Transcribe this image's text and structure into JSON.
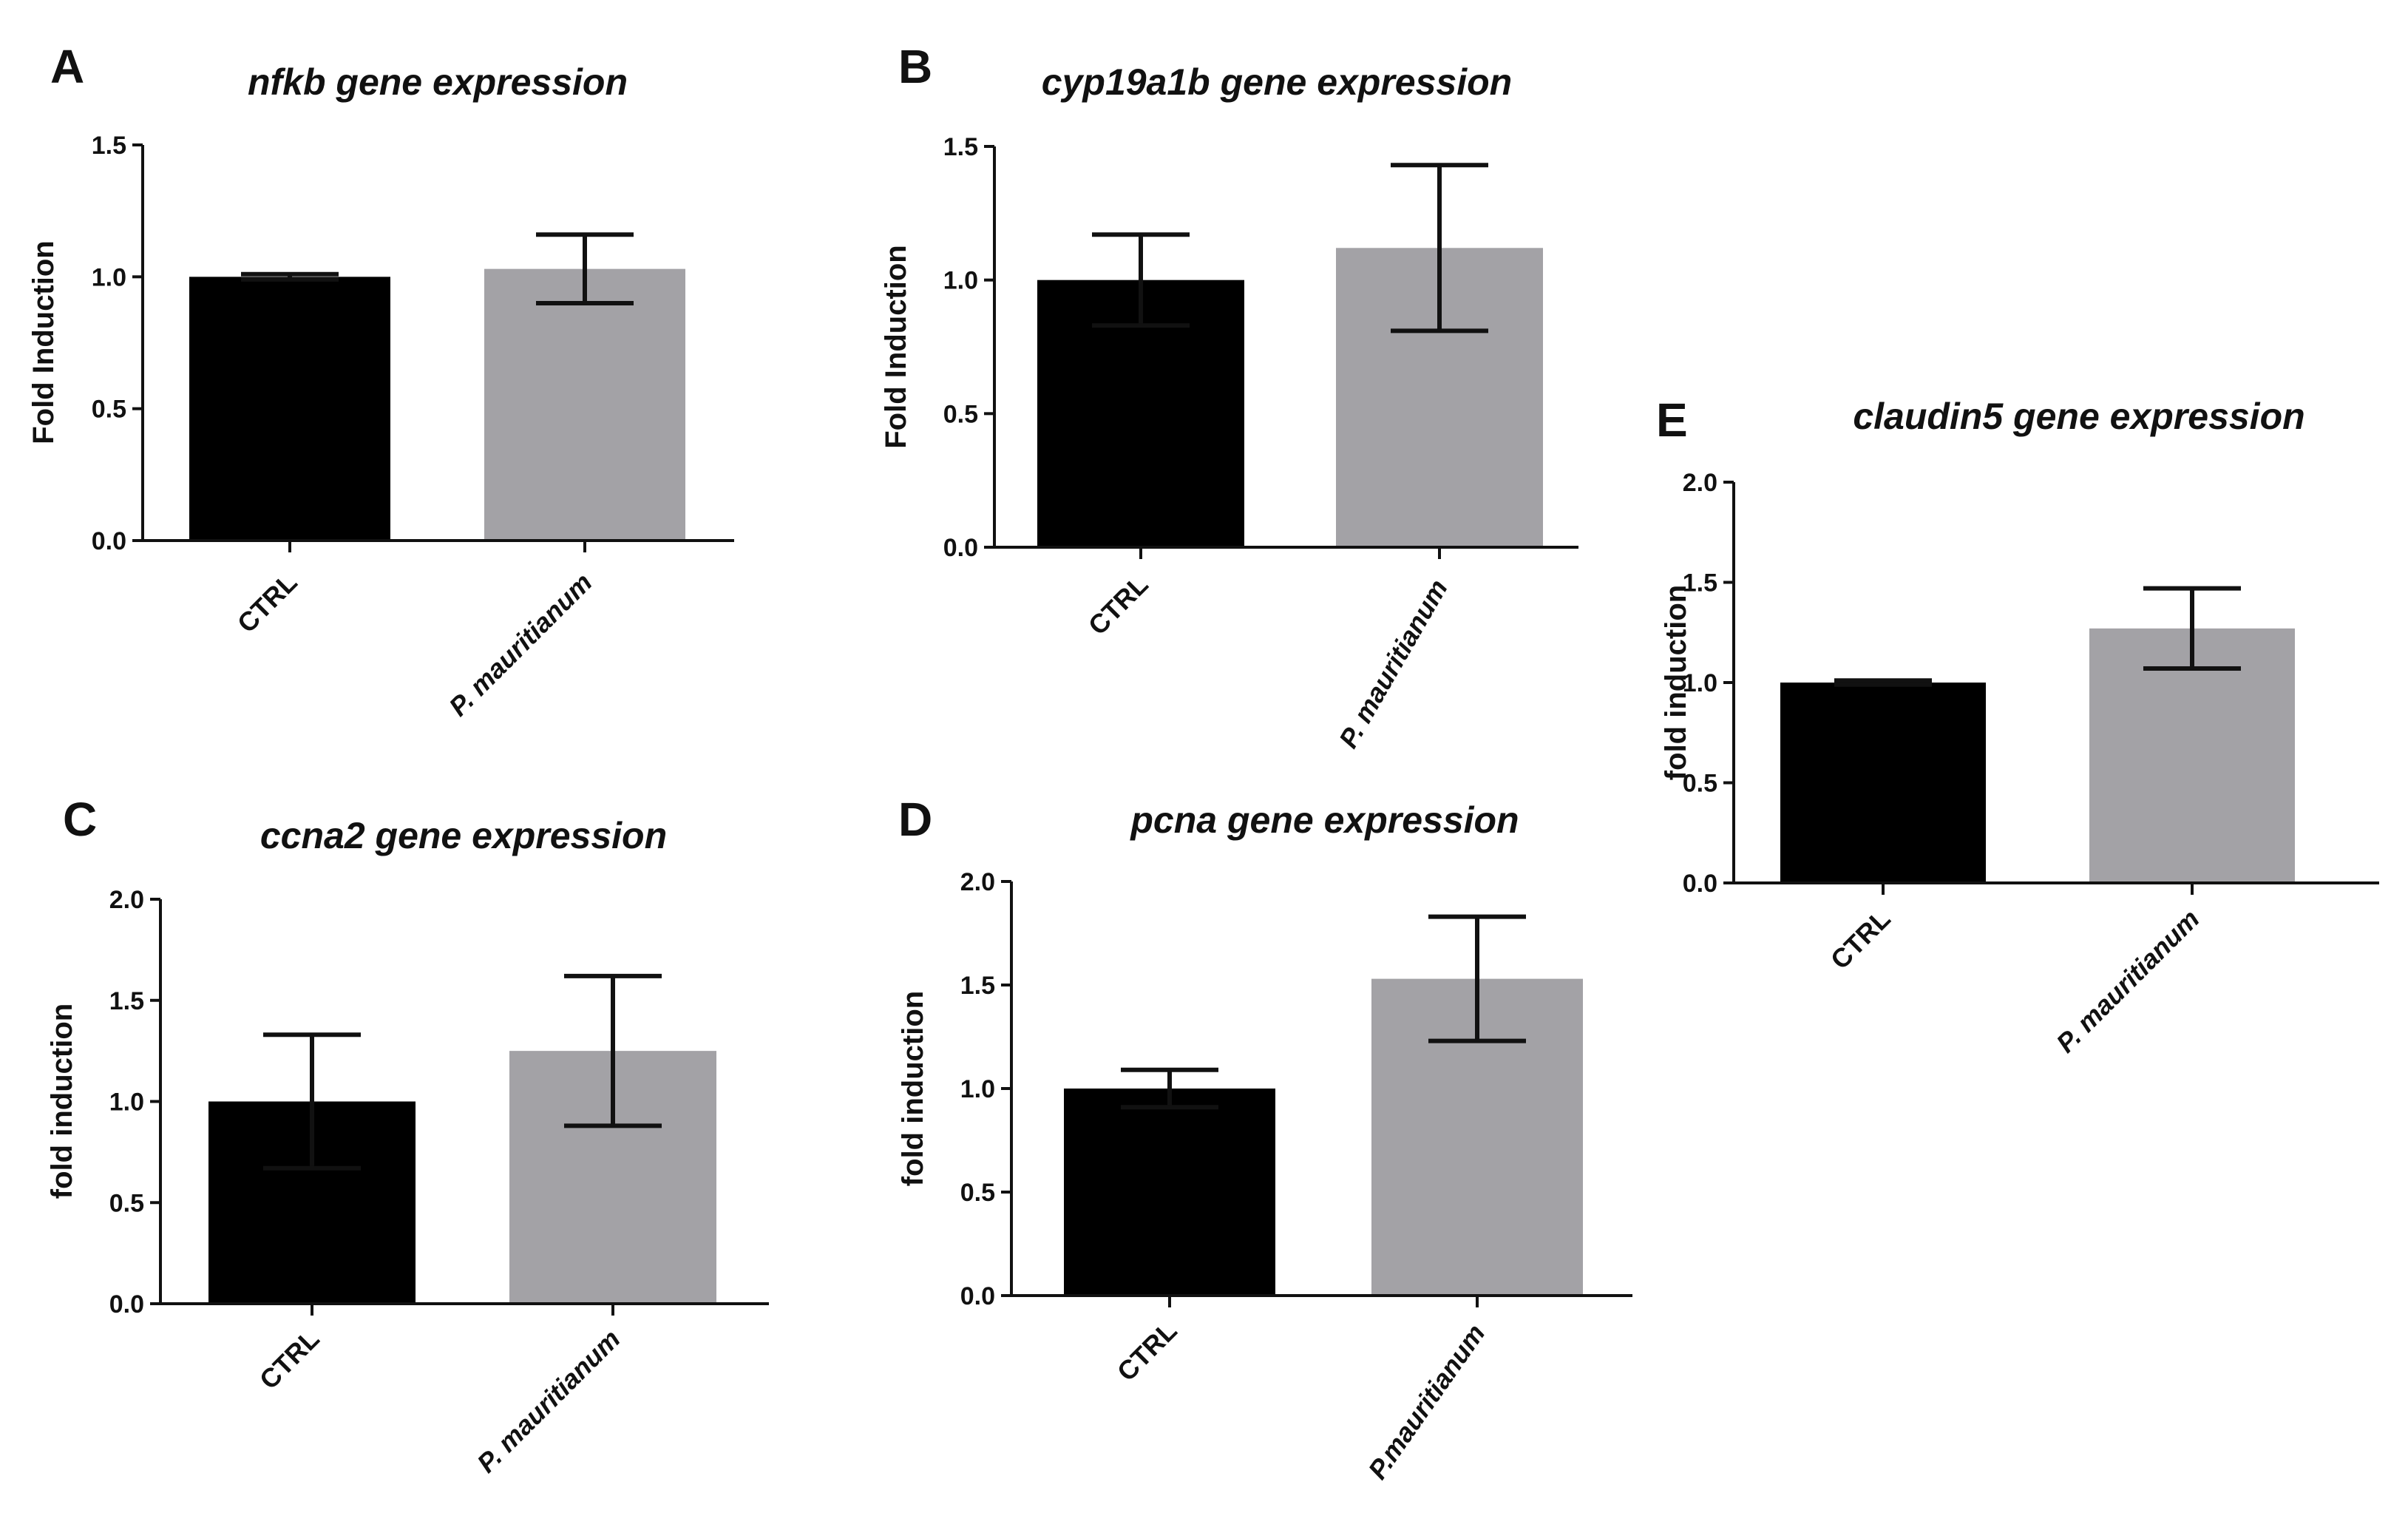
{
  "chart_data": [
    {
      "panel": "A",
      "type": "bar",
      "title": "nfkb gene expression",
      "ylabel": "Fold Induction",
      "xlabel": "",
      "categories": [
        "CTRL",
        "P. mauritianum"
      ],
      "values": [
        1.0,
        1.03
      ],
      "error": [
        0.01,
        0.13
      ],
      "colors": [
        "#000000",
        "#a3a2a6"
      ],
      "ylim": [
        0,
        1.5
      ],
      "yticks": [
        "0.0",
        "0.5",
        "1.0",
        "1.5"
      ],
      "ytick_values": [
        0,
        0.5,
        1.0,
        1.5
      ]
    },
    {
      "panel": "B",
      "type": "bar",
      "title": "cyp19a1b gene expression",
      "ylabel": "Fold Induction",
      "xlabel": "",
      "categories": [
        "CTRL",
        "P. mauritianum"
      ],
      "values": [
        1.0,
        1.12
      ],
      "error": [
        0.17,
        0.31
      ],
      "colors": [
        "#000000",
        "#a3a2a6"
      ],
      "ylim": [
        0,
        1.5
      ],
      "yticks": [
        "0.0",
        "0.5",
        "1.0",
        "1.5"
      ],
      "ytick_values": [
        0,
        0.5,
        1.0,
        1.5
      ]
    },
    {
      "panel": "C",
      "type": "bar",
      "title": "ccna2 gene expression",
      "ylabel": "fold induction",
      "xlabel": "",
      "categories": [
        "CTRL",
        "P. mauritianum"
      ],
      "values": [
        1.0,
        1.25
      ],
      "error": [
        0.33,
        0.37
      ],
      "colors": [
        "#000000",
        "#a3a2a6"
      ],
      "ylim": [
        0,
        2.0
      ],
      "yticks": [
        "0.0",
        "0.5",
        "1.0",
        "1.5",
        "2.0"
      ],
      "ytick_values": [
        0,
        0.5,
        1.0,
        1.5,
        2.0
      ]
    },
    {
      "panel": "D",
      "type": "bar",
      "title": "pcna gene expression",
      "ylabel": "fold induction",
      "xlabel": "",
      "categories": [
        "CTRL",
        "P.mauritianum"
      ],
      "values": [
        1.0,
        1.53
      ],
      "error": [
        0.09,
        0.3
      ],
      "colors": [
        "#000000",
        "#a3a2a6"
      ],
      "ylim": [
        0,
        2.0
      ],
      "yticks": [
        "0.0",
        "0.5",
        "1.0",
        "1.5",
        "2.0"
      ],
      "ytick_values": [
        0,
        0.5,
        1.0,
        1.5,
        2.0
      ]
    },
    {
      "panel": "E",
      "type": "bar",
      "title": "claudin5 gene expression",
      "ylabel": "fold induction",
      "xlabel": "",
      "categories": [
        "CTRL",
        "P. mauritianum"
      ],
      "values": [
        1.0,
        1.27
      ],
      "error": [
        0.01,
        0.2
      ],
      "colors": [
        "#000000",
        "#a3a2a6"
      ],
      "ylim": [
        0,
        2.0
      ],
      "yticks": [
        "0.0",
        "0.5",
        "1.0",
        "1.5",
        "2.0"
      ],
      "ytick_values": [
        0,
        0.5,
        1.0,
        1.5,
        2.0
      ]
    }
  ]
}
